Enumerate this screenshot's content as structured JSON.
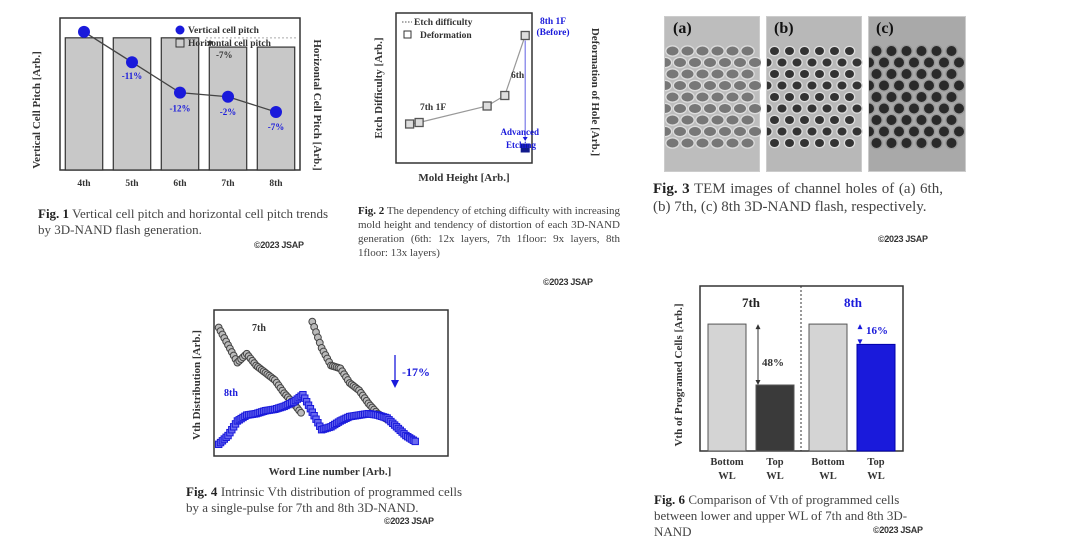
{
  "copyright": "©2023 JSAP",
  "figures": {
    "fig1": {
      "caption_label": "Fig. 1",
      "caption_text": " Vertical cell pitch and horizontal cell pitch trends by 3D-NAND flash generation."
    },
    "fig2": {
      "caption_label": "Fig. 2",
      "caption_text": " The dependency of etching difficulty with increasing mold height and tendency of distortion of each 3D-NAND generation (6th: 12x layers, 7th 1floor: 9x layers, 8th 1floor: 13x layers)"
    },
    "fig3": {
      "caption_label": "Fig. 3",
      "caption_text": " TEM images of channel holes of (a) 6th, (b) 7th, (c) 8th 3D-NAND flash, respectively.",
      "panels": [
        "(a)",
        "(b)",
        "(c)"
      ]
    },
    "fig4": {
      "caption_label": "Fig. 4",
      "caption_text": " Intrinsic Vth distribution of programmed cells by a single-pulse for 7th and 8th 3D-NAND."
    },
    "fig6": {
      "caption_label": "Fig. 6",
      "caption_text": " Comparison of Vth of programmed cells between lower and upper WL of 7th and 8th 3D-NAND"
    }
  },
  "colors": {
    "accent_blue": "#1a1adb",
    "bar_gray": "#c8c8c8",
    "dark_bar": "#3a3a3a"
  },
  "chart_data": [
    {
      "id": "fig1",
      "type": "bar",
      "title": "",
      "xlabel": "",
      "ylabel": "Vertical Cell Pitch [Arb.]",
      "y2label": "Horizontal Cell Pitch [Arb.]",
      "categories": [
        "4th",
        "5th",
        "6th",
        "7th",
        "8th"
      ],
      "series": [
        {
          "name": "Horizontal cell pitch",
          "kind": "bar",
          "values": [
            1.0,
            1.0,
            1.0,
            0.93,
            0.93
          ]
        },
        {
          "name": "Vertical cell pitch",
          "kind": "line",
          "values": [
            1.0,
            0.89,
            0.78,
            0.765,
            0.71
          ]
        }
      ],
      "ylim": [
        0.5,
        1.05
      ],
      "y2lim": [
        0,
        1.15
      ],
      "legend": [
        "Vertical cell pitch",
        "Horizontal cell pitch"
      ],
      "legend_position": "top-right",
      "annotations": [
        "-11%",
        "-12%",
        "-2%",
        "-7%",
        "-7%"
      ]
    },
    {
      "id": "fig2",
      "type": "scatter",
      "xlabel": "Mold Height [Arb.]",
      "ylabel": "Etch Difficulty [Arb.]",
      "y2label": "Deformation of Hole [Arb.]",
      "legend": [
        "Etch difficulty",
        "Deformation"
      ],
      "legend_position": "top-left",
      "series": [
        {
          "name": "Deformation",
          "x": [
            0.1,
            0.17,
            0.67,
            0.8,
            0.95
          ],
          "y": [
            0.26,
            0.27,
            0.38,
            0.45,
            0.85
          ]
        },
        {
          "name": "Advanced Etching",
          "x": [
            0.95
          ],
          "y": [
            0.1
          ]
        }
      ],
      "xlim": [
        0,
        1
      ],
      "ylim": [
        0,
        1
      ],
      "annotations": [
        "7th 1F",
        "6th",
        "8th 1F",
        "(Before)",
        "Advanced",
        "Etching"
      ]
    },
    {
      "id": "fig4",
      "type": "scatter",
      "xlabel": "Word Line number [Arb.]",
      "ylabel": "Vth Distribution [Arb.]",
      "series": [
        {
          "name": "7th",
          "x": [
            0.02,
            0.06,
            0.1,
            0.14,
            0.18,
            0.22,
            0.26,
            0.3,
            0.34,
            0.38,
            0.42,
            0.46,
            0.5,
            0.54,
            0.58,
            0.62,
            0.66,
            0.7,
            0.74
          ],
          "y": [
            0.88,
            0.76,
            0.64,
            0.7,
            0.62,
            0.57,
            0.52,
            0.43,
            0.36,
            0.28,
            0.92,
            0.74,
            0.62,
            0.6,
            0.5,
            0.45,
            0.36,
            0.29,
            0.25
          ]
        },
        {
          "name": "8th",
          "x": [
            0.02,
            0.06,
            0.1,
            0.14,
            0.18,
            0.22,
            0.26,
            0.3,
            0.34,
            0.38,
            0.42,
            0.46,
            0.5,
            0.54,
            0.58,
            0.62,
            0.66,
            0.7,
            0.74,
            0.78,
            0.82,
            0.86
          ],
          "y": [
            0.08,
            0.14,
            0.24,
            0.28,
            0.29,
            0.31,
            0.32,
            0.34,
            0.37,
            0.42,
            0.3,
            0.18,
            0.2,
            0.24,
            0.27,
            0.28,
            0.29,
            0.28,
            0.26,
            0.2,
            0.14,
            0.1
          ]
        }
      ],
      "xlim": [
        0,
        1
      ],
      "ylim": [
        0,
        1
      ],
      "annotations": [
        "7th",
        "8th",
        "-17%"
      ]
    },
    {
      "id": "fig6",
      "type": "bar",
      "ylabel": "Vth of Programed Cells [Arb.]",
      "groups": [
        "7th",
        "8th"
      ],
      "categories": [
        "Bottom WL",
        "Top WL",
        "Bottom WL",
        "Top WL"
      ],
      "values": [
        1.0,
        0.52,
        1.0,
        0.84
      ],
      "ylim": [
        0,
        1.3
      ],
      "annotations": [
        "48%",
        "16%"
      ]
    }
  ]
}
